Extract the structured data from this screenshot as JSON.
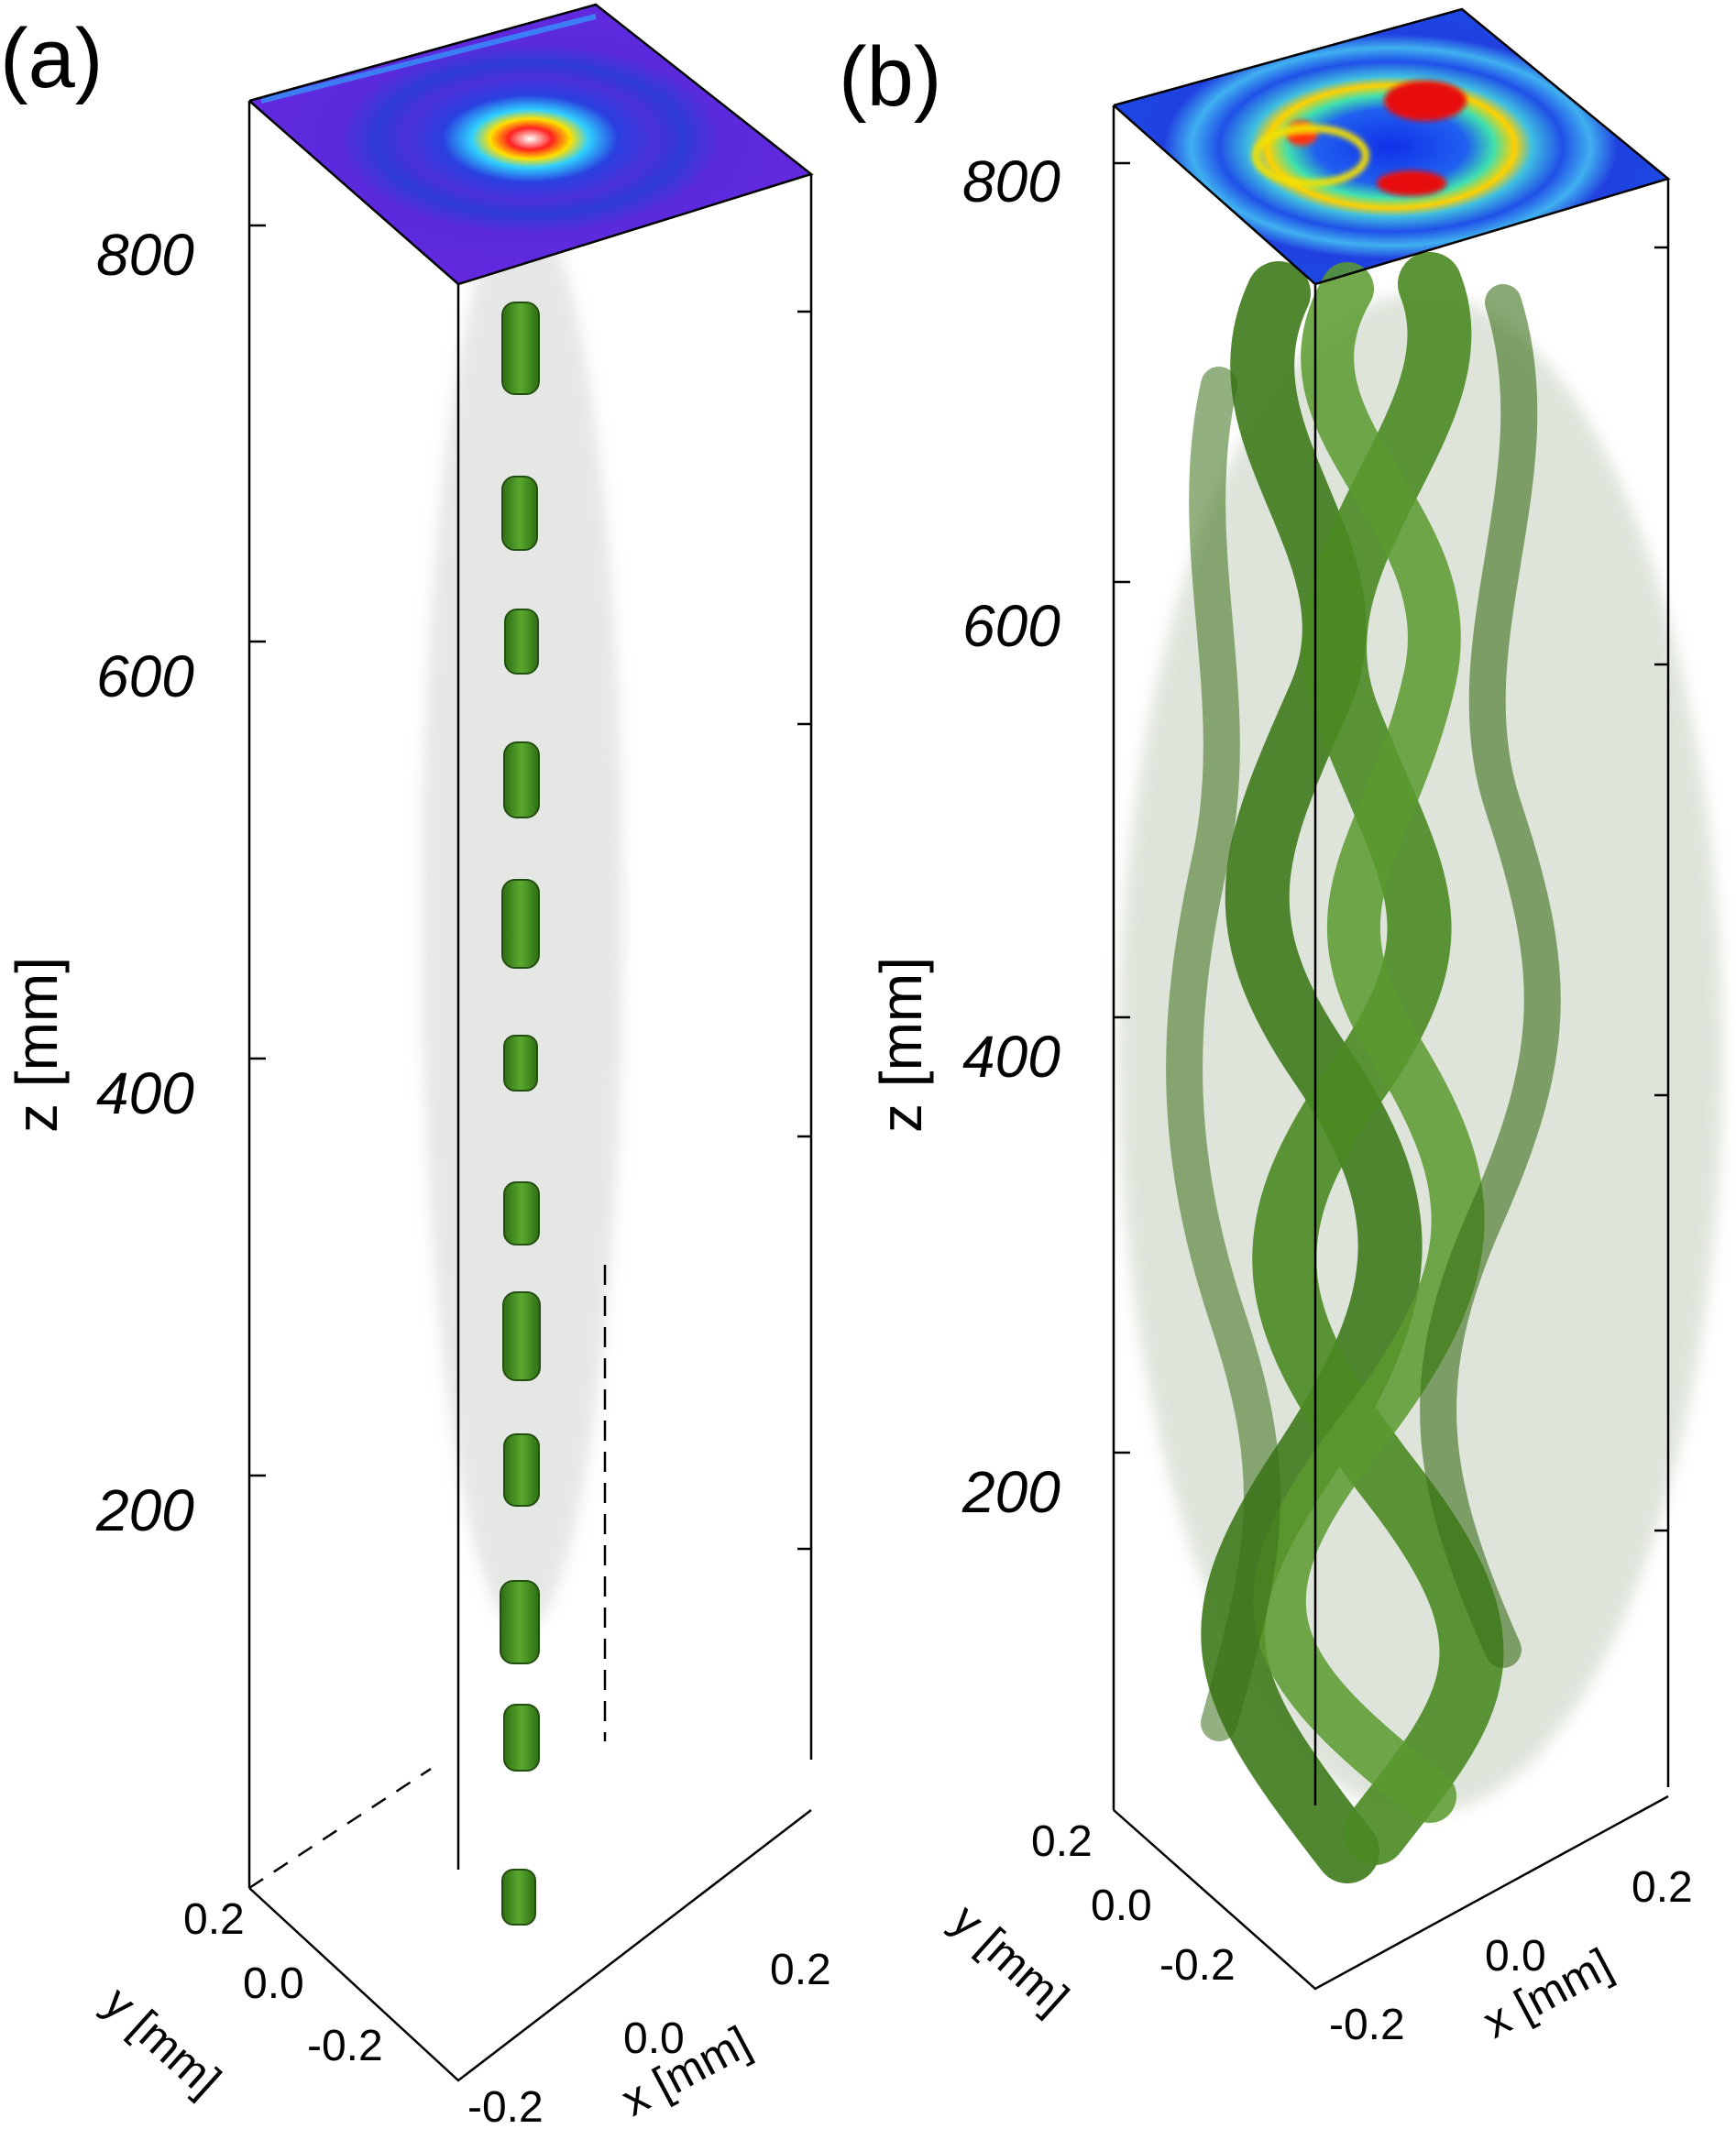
{
  "panels": [
    {
      "label": "(a)",
      "z_axis": {
        "label": "z [mm]",
        "ticks": [
          "800",
          "600",
          "400",
          "200"
        ]
      },
      "x_axis": {
        "label": "x [mm]",
        "ticks": [
          "-0.2",
          "0.0",
          "0.2"
        ]
      },
      "y_axis": {
        "label": "y [mm]",
        "ticks": [
          "0.2",
          "0.0",
          "-0.2"
        ]
      },
      "top_map": "blue-purple background, bright red spot at center with concentric rings",
      "volume": "narrow chain of green filament segments along the axis"
    },
    {
      "label": "(b)",
      "z_axis": {
        "label": "z [mm]",
        "ticks": [
          "800",
          "600",
          "400",
          "200"
        ]
      },
      "x_axis": {
        "label": "x [mm]",
        "ticks": [
          "-0.2",
          "0.0",
          "0.2"
        ]
      },
      "y_axis": {
        "label": "y [mm]",
        "ticks": [
          "0.2",
          "0.0",
          "-0.2"
        ]
      },
      "top_map": "blue-cyan background with red/yellow ring arcs",
      "volume": "wide braided green filaments spiraling along the axis"
    }
  ],
  "colors": {
    "filament": "#3f8a1f",
    "filament_light": "#6fb23a",
    "map_a_bg": "#5a22d8",
    "map_b_bg": "#2a4cf0",
    "hot": "#e81010",
    "warm": "#f4e000"
  }
}
